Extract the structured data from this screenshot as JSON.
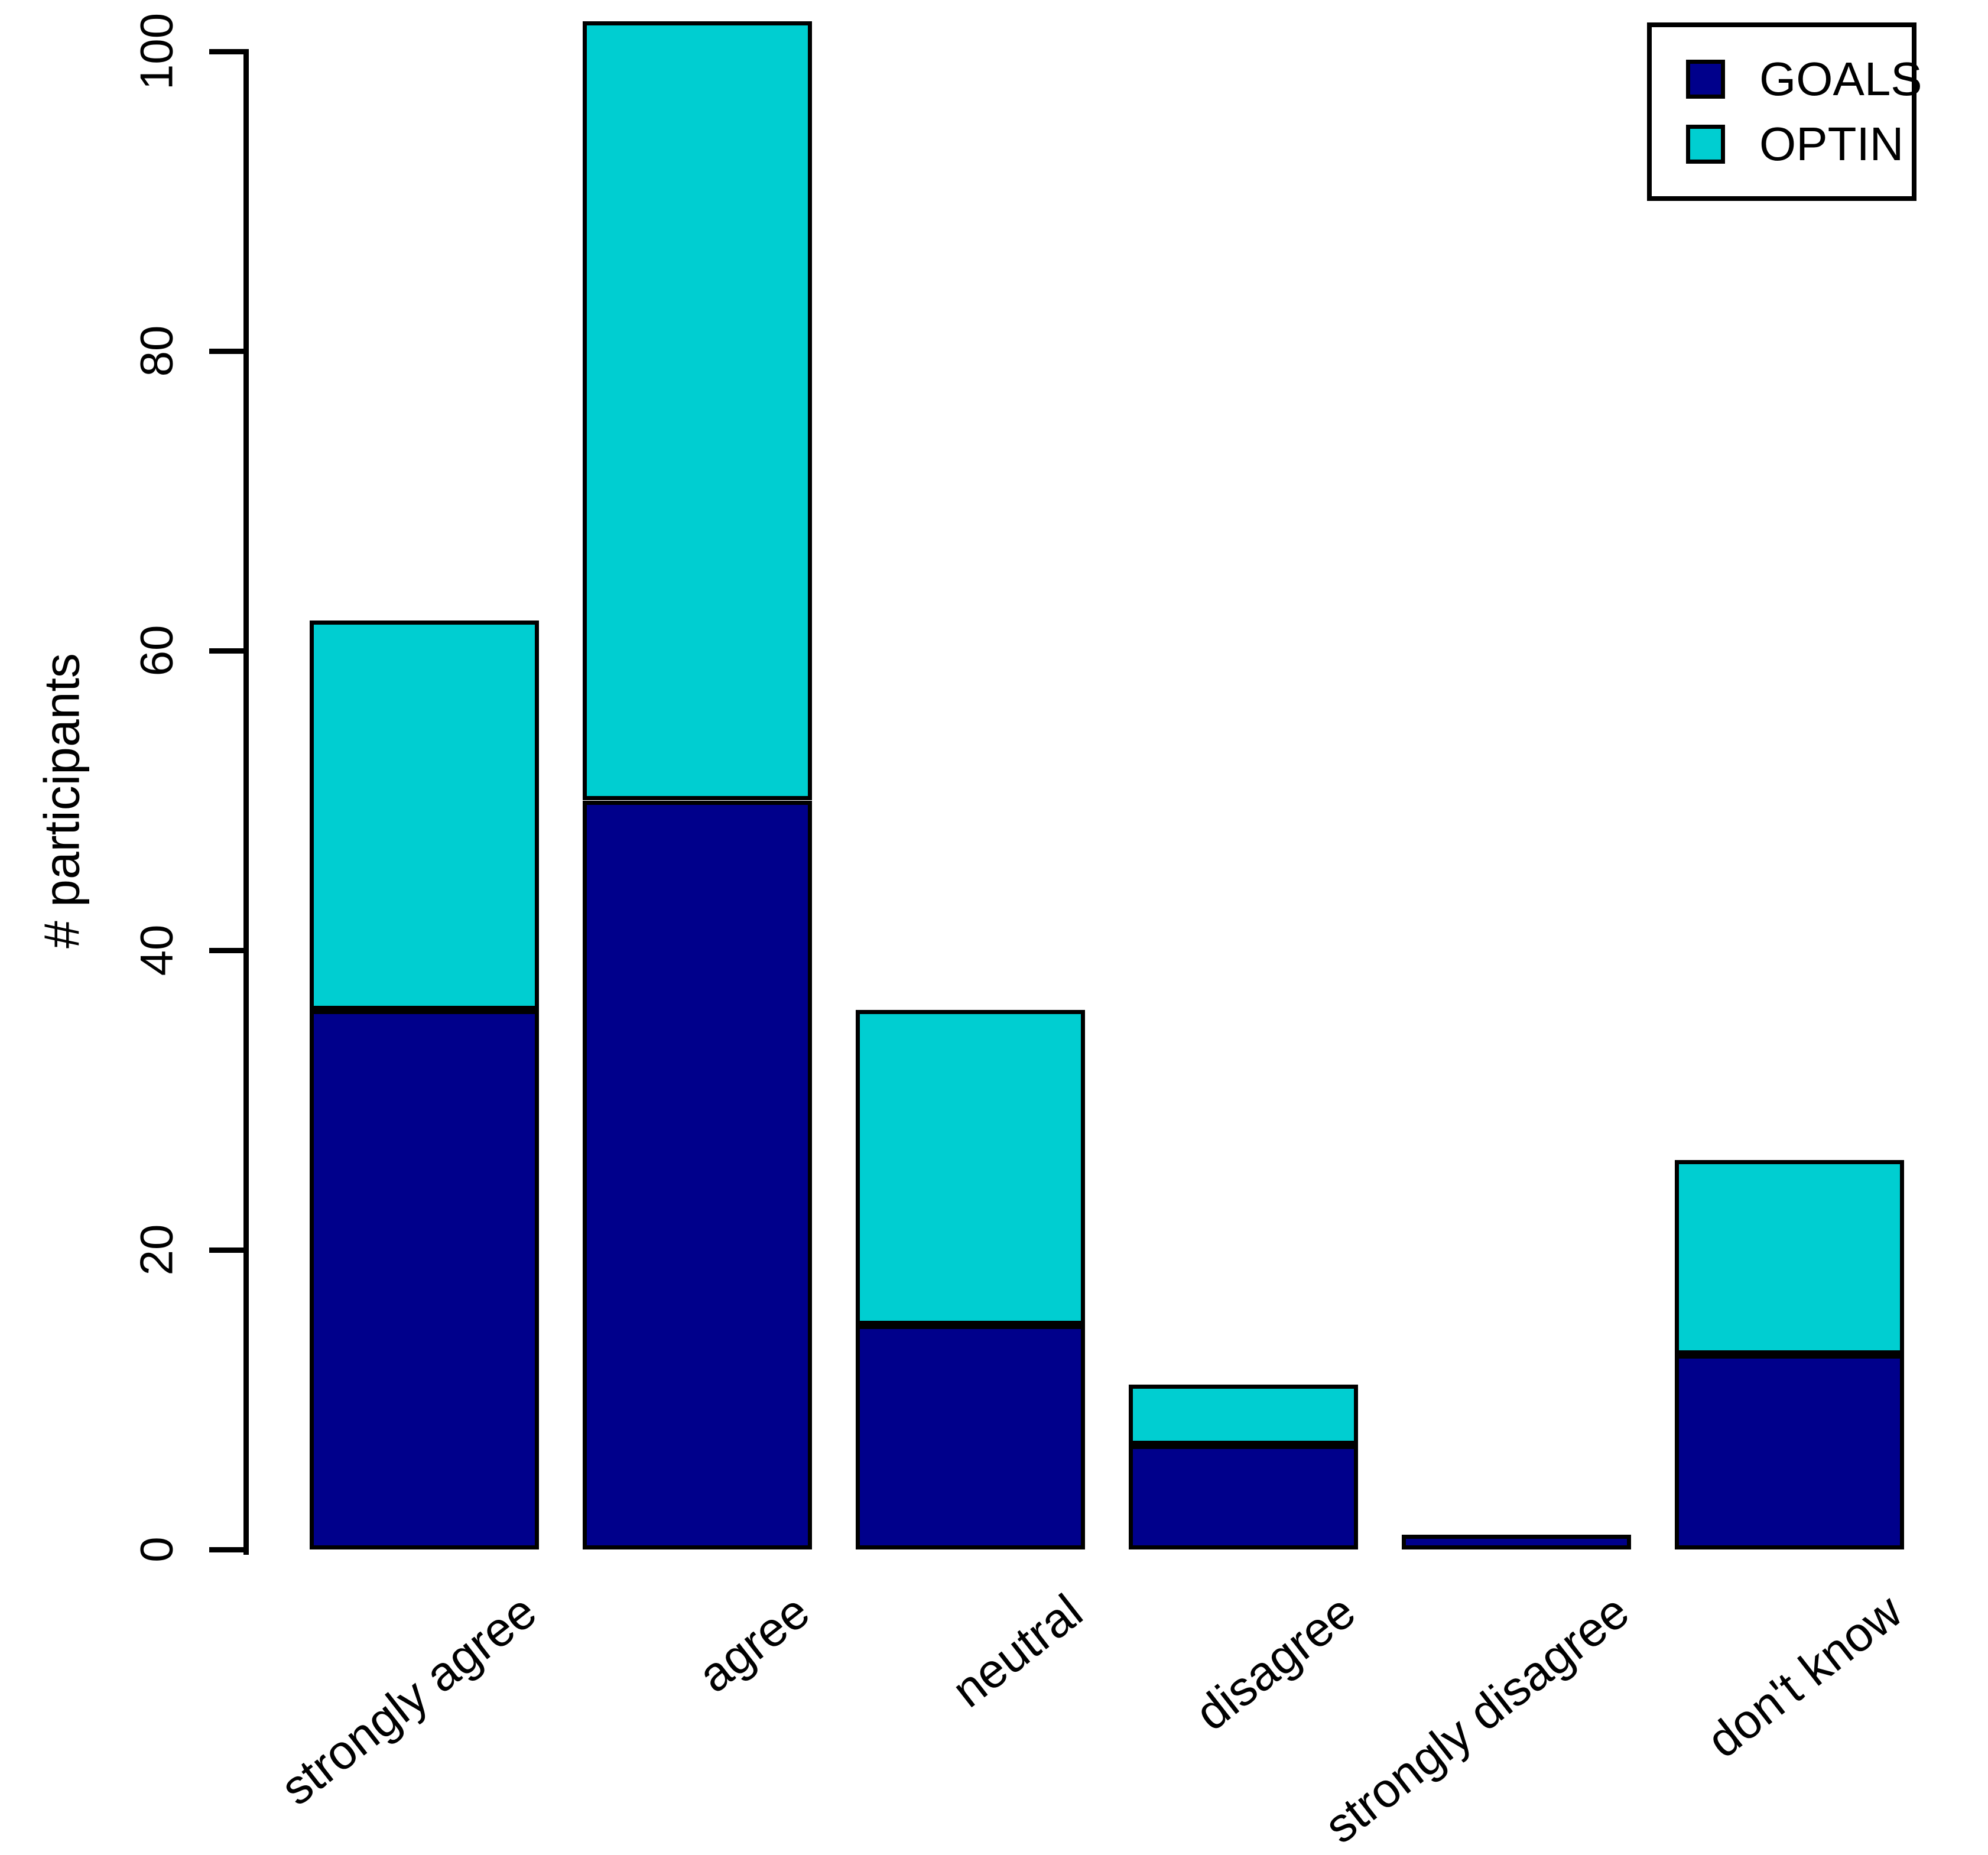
{
  "chart_data": {
    "type": "bar",
    "stacked": true,
    "title": "",
    "xlabel": "",
    "ylabel": "# participants",
    "categories": [
      "strongly agree",
      "agree",
      "neutral",
      "disagree",
      "strongly disagree",
      "don't know"
    ],
    "series": [
      {
        "name": "GOALS",
        "color": "#00008B",
        "values": [
          36,
          50,
          15,
          7,
          1,
          13
        ]
      },
      {
        "name": "OPTIN",
        "color": "#00CED1",
        "values": [
          26,
          52,
          21,
          4,
          0,
          13
        ]
      }
    ],
    "totals": [
      62,
      102,
      36,
      11,
      1,
      26
    ],
    "yticks": [
      0,
      20,
      40,
      60,
      80,
      100
    ],
    "ylim": [
      0,
      102
    ],
    "grid": false,
    "legend_position": "top-right",
    "axis_color": "#000000",
    "background_color": "#ffffff"
  }
}
